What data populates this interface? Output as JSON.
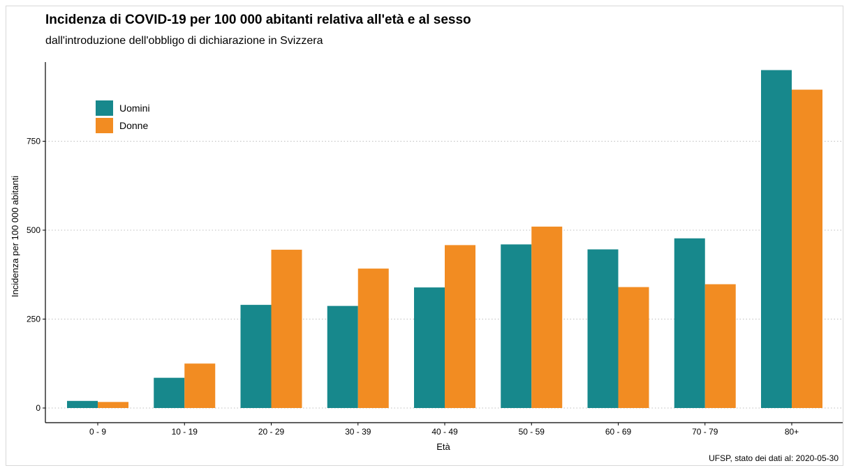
{
  "chart_data": {
    "type": "bar",
    "title": "Incidenza di COVID-19 per 100 000 abitanti relativa all'età e al sesso",
    "subtitle": "dall'introduzione dell'obbligo di dichiarazione in Svizzera",
    "xlabel": "Età",
    "ylabel": "Incidenza per 100 000 abitanti",
    "caption": "UFSP, stato dei dati al: 2020-05-30",
    "categories": [
      "0 - 9",
      "10 - 19",
      "20 - 29",
      "30 - 39",
      "40 - 49",
      "50 - 59",
      "60 - 69",
      "70 - 79",
      "80+"
    ],
    "series": [
      {
        "name": "Uomini",
        "color": "#17888c",
        "values": [
          20,
          85,
          290,
          287,
          339,
          460,
          446,
          477,
          950
        ]
      },
      {
        "name": "Donne",
        "color": "#f28c22",
        "values": [
          17,
          125,
          445,
          392,
          458,
          510,
          340,
          348,
          895
        ]
      }
    ],
    "ylim": [
      0,
      970
    ],
    "yticks": [
      0,
      250,
      500,
      750
    ],
    "grid": "horizontal dotted",
    "legend_position": "top-left"
  }
}
